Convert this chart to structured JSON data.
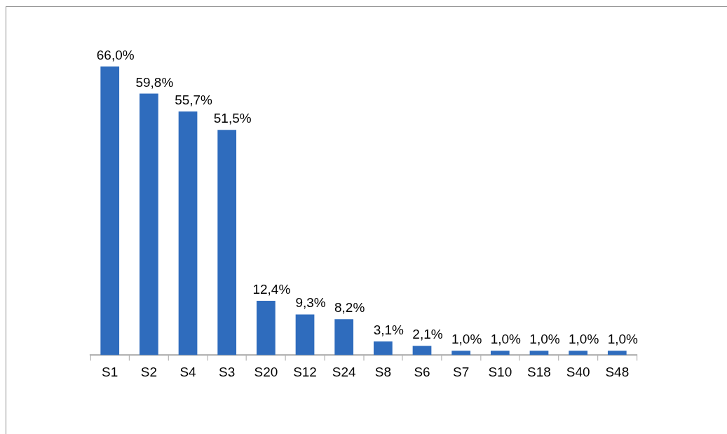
{
  "chart_data": {
    "type": "bar",
    "categories": [
      "S1",
      "S2",
      "S4",
      "S3",
      "S20",
      "S12",
      "S24",
      "S8",
      "S6",
      "S7",
      "S10",
      "S18",
      "S40",
      "S48"
    ],
    "values": [
      66.0,
      59.8,
      55.7,
      51.5,
      12.4,
      9.3,
      8.2,
      3.1,
      2.1,
      1.0,
      1.0,
      1.0,
      1.0,
      1.0
    ],
    "value_labels": [
      "66,0%",
      "59,8%",
      "55,7%",
      "51,5%",
      "12,4%",
      "9,3%",
      "8,2%",
      "3,1%",
      "2,1%",
      "1,0%",
      "1,0%",
      "1,0%",
      "1,0%",
      "1,0%"
    ],
    "color": "#2f6cbd"
  }
}
